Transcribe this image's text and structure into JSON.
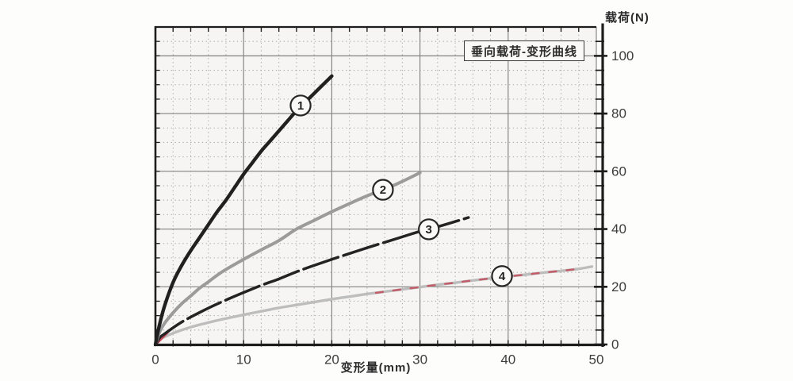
{
  "chart_data": {
    "type": "line",
    "title": "垂向载荷-变形曲线",
    "xlabel": "变形量(mm)",
    "ylabel": "载荷(N)",
    "xlim": [
      0,
      50
    ],
    "ylim": [
      0,
      110
    ],
    "x_tick_labels": [
      "0",
      "10",
      "20",
      "30",
      "40",
      "50"
    ],
    "x_tick_values": [
      0,
      10,
      20,
      30,
      40,
      50
    ],
    "y_tick_labels": [
      "0",
      "20",
      "40",
      "60",
      "80",
      "100"
    ],
    "y_tick_values": [
      0,
      20,
      40,
      60,
      80,
      100
    ],
    "x_minor_step": 2,
    "y_minor_step": 5,
    "grid": {
      "major": "solid",
      "minor": "dotted"
    },
    "legend_position": "circled-numbers-on-curves",
    "series": [
      {
        "name": "1",
        "color": "#202020",
        "style": "solid",
        "width": 4.4,
        "marker": {
          "x": 16.46,
          "y": 82.8,
          "label": "1"
        },
        "points": [
          [
            0,
            0
          ],
          [
            0.4,
            6
          ],
          [
            1,
            13
          ],
          [
            2,
            21.5
          ],
          [
            3,
            27.5
          ],
          [
            4,
            32.5
          ],
          [
            5,
            37
          ],
          [
            6,
            41.5
          ],
          [
            7,
            46
          ],
          [
            8,
            50
          ],
          [
            9,
            54.5
          ],
          [
            10,
            59
          ],
          [
            11,
            63
          ],
          [
            12,
            67
          ],
          [
            13,
            70.5
          ],
          [
            14,
            74
          ],
          [
            15,
            77.5
          ],
          [
            16,
            81
          ],
          [
            17,
            84
          ],
          [
            18,
            87
          ],
          [
            19,
            90
          ],
          [
            20,
            93
          ]
        ]
      },
      {
        "name": "2",
        "color": "#9b9b9b",
        "style": "solid",
        "width": 4,
        "marker": {
          "x": 25.8,
          "y": 53.6,
          "label": "2"
        },
        "points": [
          [
            0,
            0
          ],
          [
            0.5,
            4.5
          ],
          [
            1,
            7.2
          ],
          [
            2,
            11
          ],
          [
            3,
            14.2
          ],
          [
            4,
            16.8
          ],
          [
            5,
            19.5
          ],
          [
            6,
            21.7
          ],
          [
            7,
            24
          ],
          [
            8,
            26
          ],
          [
            10,
            29.5
          ],
          [
            12,
            32.8
          ],
          [
            14,
            36
          ],
          [
            16,
            40
          ],
          [
            18,
            43
          ],
          [
            20,
            46
          ],
          [
            22,
            48.8
          ],
          [
            24,
            51.5
          ],
          [
            26,
            53.8
          ],
          [
            28,
            56.5
          ],
          [
            30,
            59.5
          ]
        ]
      },
      {
        "name": "3",
        "color": "#232323",
        "style": "long-dash",
        "width": 3.5,
        "marker": {
          "x": 31.0,
          "y": 39.9,
          "label": "3"
        },
        "points": [
          [
            0,
            0
          ],
          [
            0.5,
            2.4
          ],
          [
            1,
            3.6
          ],
          [
            2,
            5.8
          ],
          [
            3,
            7.8
          ],
          [
            4,
            9.5
          ],
          [
            6,
            12.6
          ],
          [
            8,
            15.4
          ],
          [
            10,
            18
          ],
          [
            12,
            20.5
          ],
          [
            14,
            22.7
          ],
          [
            16,
            25.2
          ],
          [
            18,
            27.4
          ],
          [
            20,
            29.5
          ],
          [
            22,
            31.5
          ],
          [
            24,
            33.5
          ],
          [
            26,
            35.4
          ],
          [
            28,
            37.3
          ],
          [
            30,
            39.2
          ],
          [
            32,
            40.8
          ],
          [
            34,
            42.6
          ],
          [
            35.5,
            44
          ]
        ]
      },
      {
        "name": "4",
        "color": "#bdbdbd",
        "style": "solid",
        "width": 3.4,
        "marker": {
          "x": 39.3,
          "y": 23.7,
          "label": "4"
        },
        "points": [
          [
            0,
            0
          ],
          [
            0.5,
            1.8
          ],
          [
            1,
            2.6
          ],
          [
            2,
            3.9
          ],
          [
            4,
            6
          ],
          [
            6,
            7.6
          ],
          [
            8,
            9
          ],
          [
            10,
            10.3
          ],
          [
            12,
            11.5
          ],
          [
            14,
            12.7
          ],
          [
            16,
            13.7
          ],
          [
            18,
            14.7
          ],
          [
            20,
            15.7
          ],
          [
            22,
            16.6
          ],
          [
            24,
            17.5
          ],
          [
            26,
            18.3
          ],
          [
            28,
            19.1
          ],
          [
            30,
            19.9
          ],
          [
            32,
            20.7
          ],
          [
            34,
            21.4
          ],
          [
            36,
            22.2
          ],
          [
            38,
            22.9
          ],
          [
            40,
            23.6
          ],
          [
            42,
            24.2
          ],
          [
            44,
            24.9
          ],
          [
            46,
            25.5
          ],
          [
            48,
            26.2
          ],
          [
            49.5,
            27
          ]
        ]
      }
    ],
    "overlays": [
      {
        "name": "red-dashed-trace-on-curve-4",
        "color": "#c34b5a",
        "follows_series": "4",
        "x_range": [
          25,
          47.5
        ],
        "style": "dashed",
        "width": 2.4
      },
      {
        "name": "red-origin-stroke",
        "color": "#c34b5a",
        "points": [
          [
            0.1,
            0.2
          ],
          [
            1.7,
            5.2
          ]
        ],
        "style": "solid",
        "width": 3
      }
    ],
    "colors": {
      "plot_background": "#f6f5f3",
      "major_grid": "#818181",
      "minor_grid": "#9c9c9c",
      "axis": "#1d1d1d",
      "tick_label": "#3c3c3c",
      "marker_fill": "#faf9f7",
      "marker_stroke": "#262626"
    }
  }
}
